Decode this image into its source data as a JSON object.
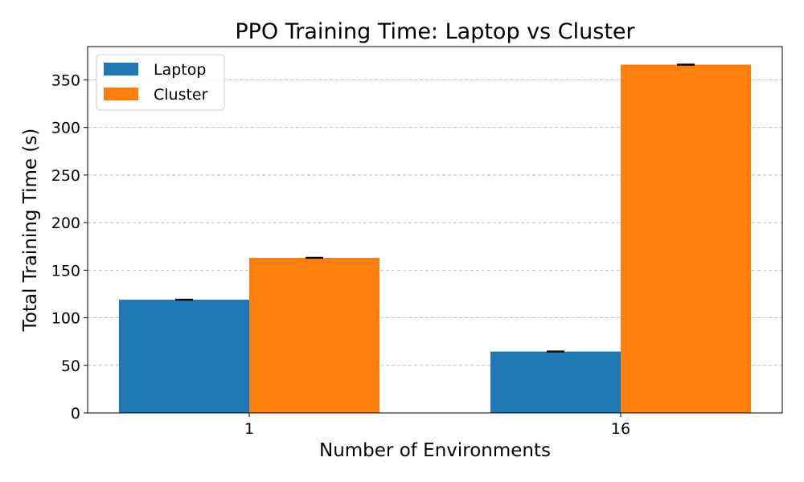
{
  "chart_data": {
    "type": "bar",
    "title": "PPO Training Time: Laptop vs Cluster",
    "xlabel": "Number of Environments",
    "ylabel": "Total Training Time (s)",
    "categories": [
      "1",
      "16"
    ],
    "series": [
      {
        "name": "Laptop",
        "color": "#1f77b4",
        "values": [
          119,
          64.5
        ],
        "errors": [
          0.5,
          0.5
        ]
      },
      {
        "name": "Cluster",
        "color": "#ff7f0e",
        "values": [
          163,
          366
        ],
        "errors": [
          0.5,
          0.5
        ]
      }
    ],
    "ylim": [
      0,
      385
    ],
    "yticks": [
      0,
      50,
      100,
      150,
      200,
      250,
      300,
      350
    ],
    "grid": "y-dashed",
    "legend_position": "top-left"
  }
}
